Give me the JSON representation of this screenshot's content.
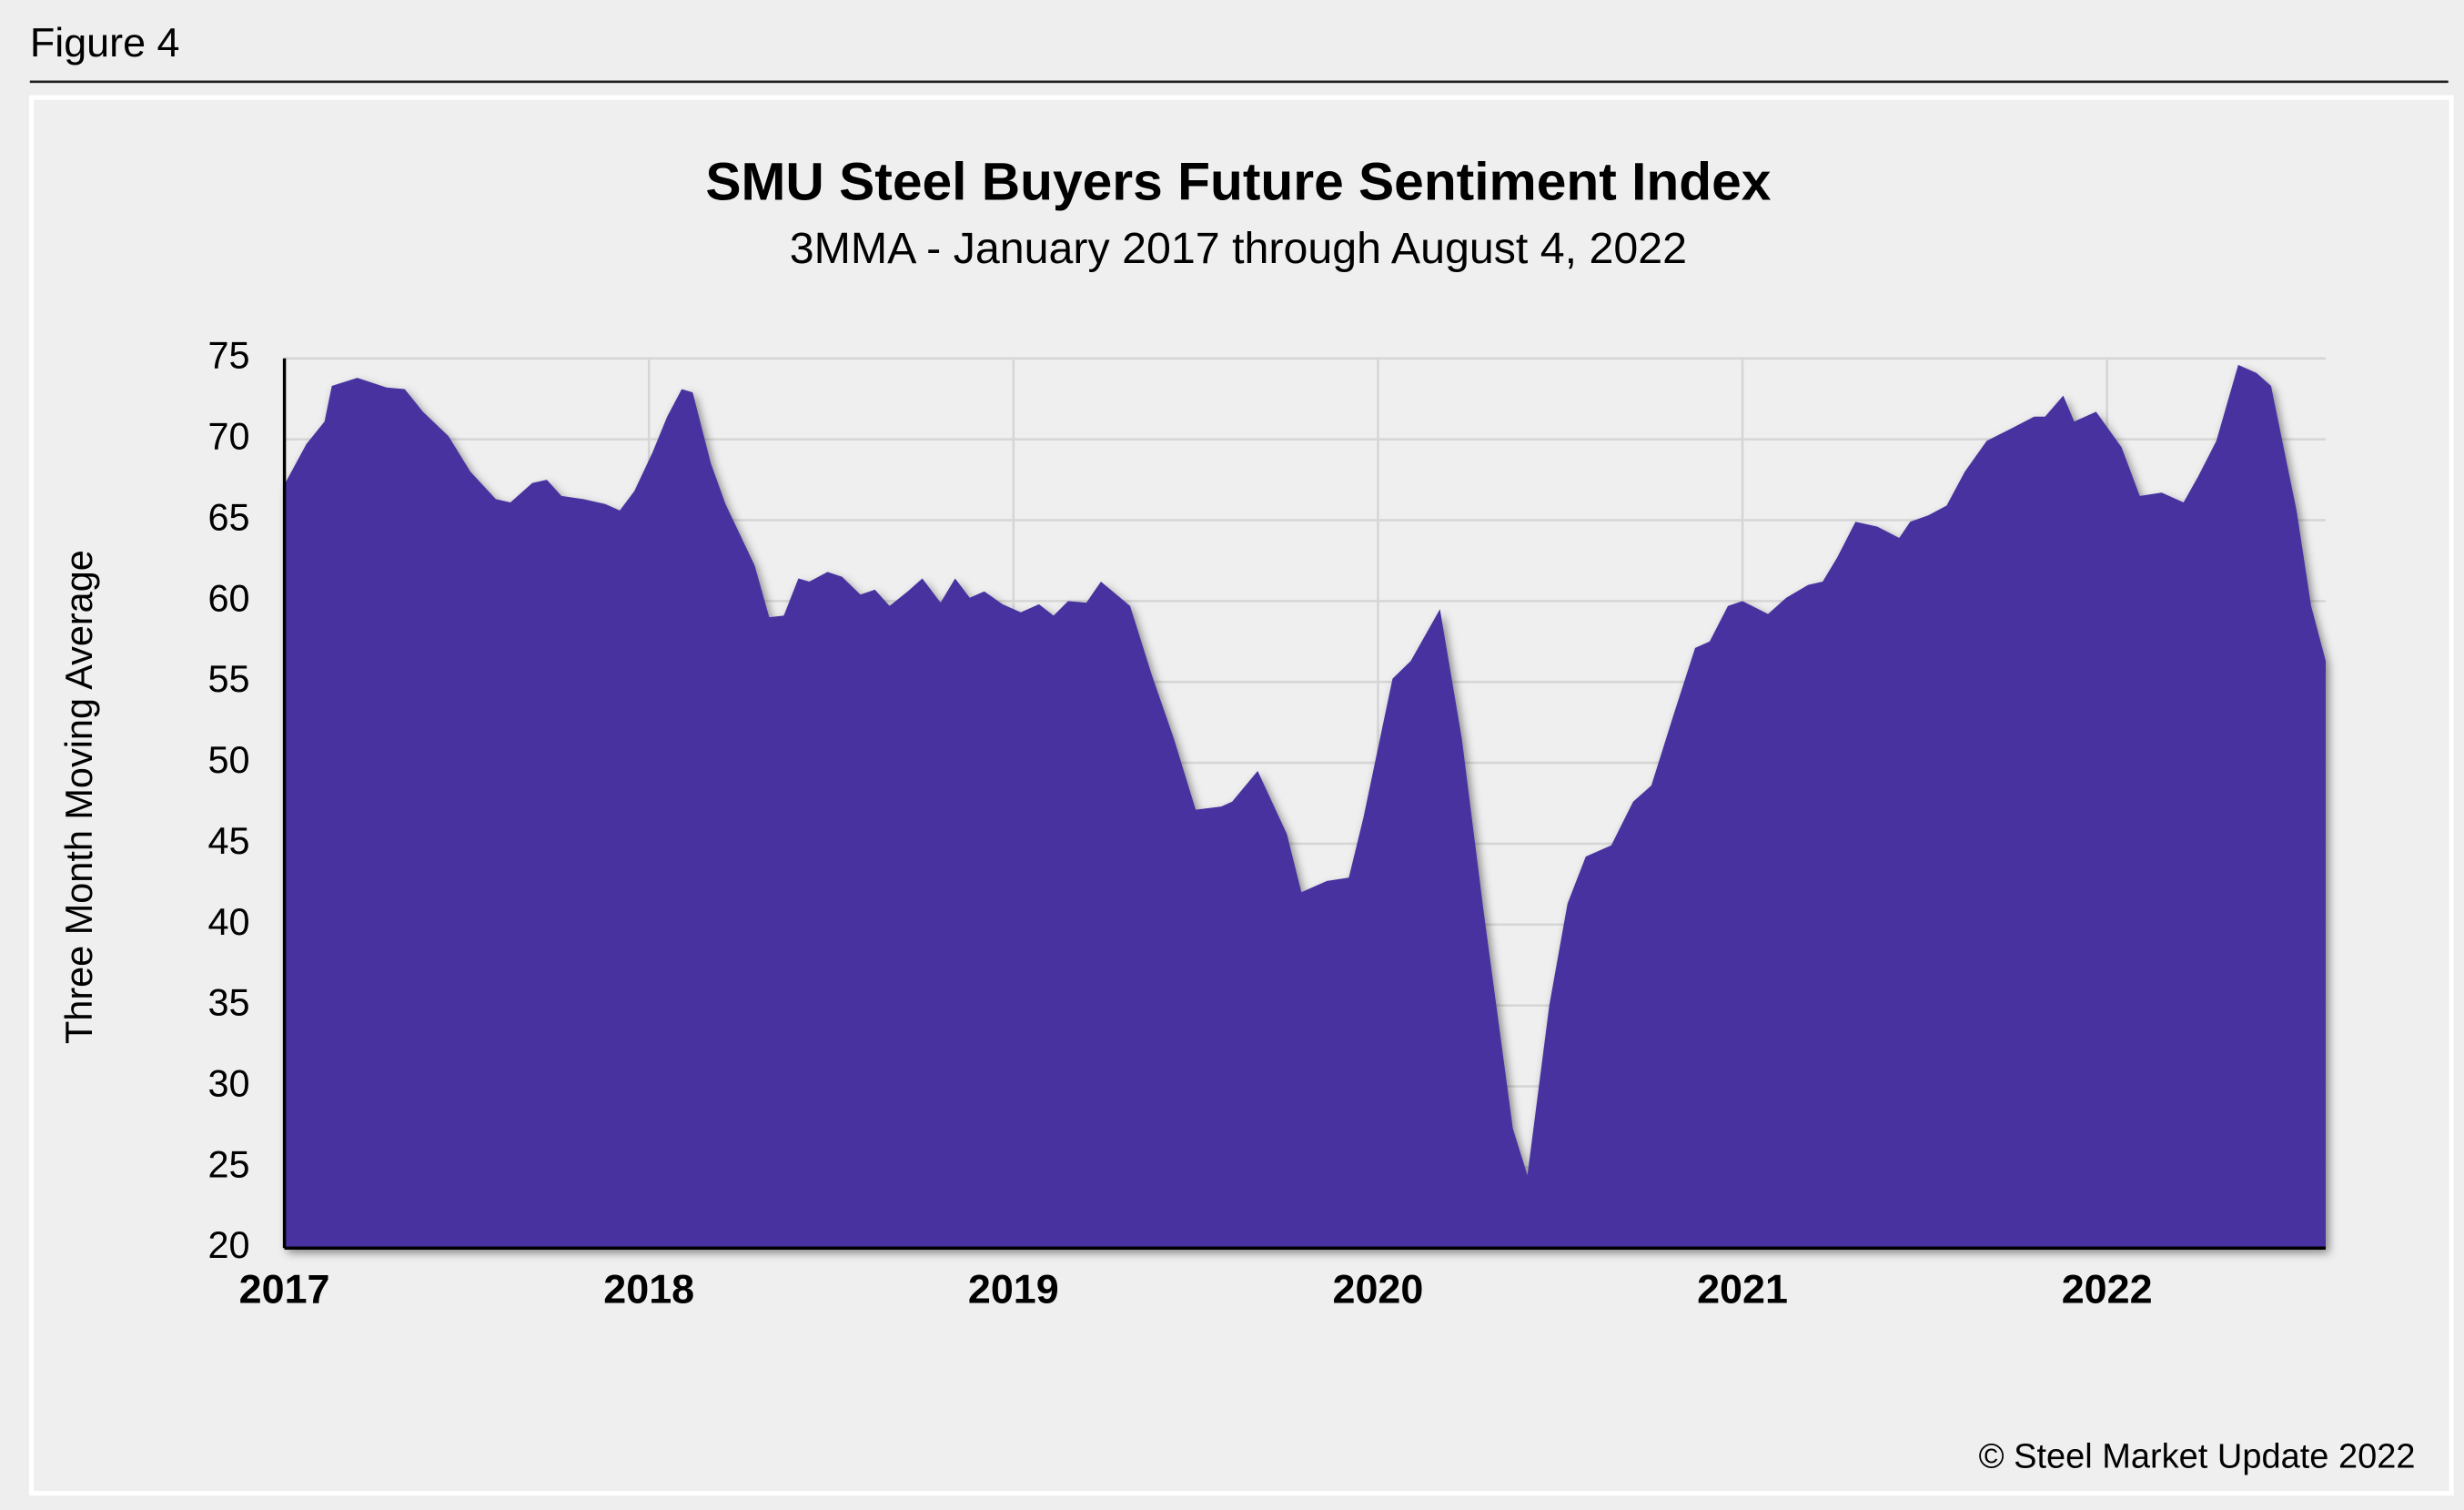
{
  "figure_label": "Figure 4",
  "copyright": "© Steel Market Update 2022",
  "chart_data": {
    "type": "area",
    "title": "SMU Steel Buyers Future Sentiment Index",
    "subtitle": "3MMA - January 2017 through August 4, 2022",
    "y_label": "Three Month Moving Average",
    "color": "#4633a0",
    "grid": true,
    "xlim": [
      2017,
      2022.6
    ],
    "xticks": [
      2017,
      2018,
      2019,
      2020,
      2021,
      2022
    ],
    "ylim": [
      20,
      75
    ],
    "yticks": [
      20,
      25,
      30,
      35,
      40,
      45,
      50,
      55,
      60,
      65,
      70,
      75
    ],
    "x": [
      2017.0,
      2017.06,
      2017.11,
      2017.13,
      2017.2,
      2017.28,
      2017.33,
      2017.38,
      2017.45,
      2017.51,
      2017.58,
      2017.62,
      2017.68,
      2017.72,
      2017.76,
      2017.82,
      2017.88,
      2017.92,
      2017.96,
      2018.01,
      2018.05,
      2018.09,
      2018.12,
      2018.17,
      2018.21,
      2018.29,
      2018.33,
      2018.37,
      2018.41,
      2018.44,
      2018.49,
      2018.53,
      2018.58,
      2018.62,
      2018.66,
      2018.71,
      2018.75,
      2018.8,
      2018.84,
      2018.88,
      2018.92,
      2018.97,
      2019.02,
      2019.07,
      2019.11,
      2019.15,
      2019.2,
      2019.24,
      2019.32,
      2019.38,
      2019.44,
      2019.5,
      2019.57,
      2019.6,
      2019.67,
      2019.75,
      2019.79,
      2019.86,
      2019.92,
      2019.96,
      2020.04,
      2020.09,
      2020.17,
      2020.23,
      2020.29,
      2020.37,
      2020.41,
      2020.47,
      2020.52,
      2020.57,
      2020.64,
      2020.7,
      2020.75,
      2020.81,
      2020.87,
      2020.91,
      2020.96,
      2021.0,
      2021.07,
      2021.12,
      2021.18,
      2021.22,
      2021.26,
      2021.31,
      2021.37,
      2021.43,
      2021.46,
      2021.51,
      2021.56,
      2021.61,
      2021.67,
      2021.74,
      2021.8,
      2021.83,
      2021.88,
      2021.91,
      2021.97,
      2022.04,
      2022.09,
      2022.15,
      2022.21,
      2022.25,
      2022.3,
      2022.36,
      2022.41,
      2022.45,
      2022.52,
      2022.56,
      2022.6
    ],
    "values": [
      67.2,
      69.7,
      71.1,
      73.3,
      73.8,
      73.2,
      73.1,
      71.7,
      70.2,
      68.0,
      66.3,
      66.1,
      67.3,
      67.5,
      66.5,
      66.3,
      66.0,
      65.6,
      66.8,
      69.2,
      71.4,
      73.1,
      72.9,
      68.5,
      66.0,
      62.2,
      59.0,
      59.1,
      61.4,
      61.2,
      61.8,
      61.5,
      60.4,
      60.7,
      59.7,
      60.6,
      61.4,
      59.9,
      61.4,
      60.2,
      60.6,
      59.8,
      59.3,
      59.8,
      59.1,
      60.0,
      59.9,
      61.2,
      59.7,
      55.4,
      51.5,
      47.1,
      47.3,
      47.6,
      49.5,
      45.6,
      42.0,
      42.7,
      42.9,
      46.6,
      55.2,
      56.3,
      59.5,
      51.5,
      40.8,
      27.4,
      24.5,
      35.0,
      41.3,
      44.2,
      44.9,
      47.6,
      48.6,
      52.9,
      57.1,
      57.5,
      59.7,
      60.0,
      59.2,
      60.2,
      61.0,
      61.2,
      62.7,
      64.9,
      64.6,
      63.9,
      64.9,
      65.3,
      65.9,
      68.0,
      69.9,
      70.7,
      71.4,
      71.4,
      72.7,
      71.1,
      71.7,
      69.5,
      66.5,
      66.7,
      66.1,
      67.7,
      69.9,
      74.6,
      74.1,
      73.3,
      65.6,
      59.7,
      56.3
    ]
  }
}
